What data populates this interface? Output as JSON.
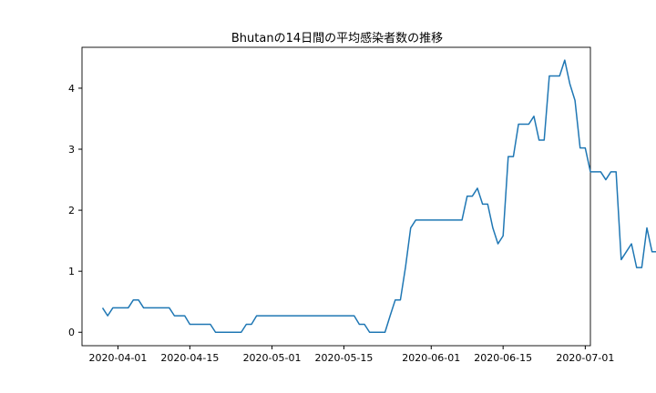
{
  "chart_data": {
    "type": "line",
    "title": "Bhutanの14日間の平均感染者数の推移",
    "xlabel": "",
    "ylabel": "",
    "x_start": "2020-03-29",
    "xlim": [
      "2020-03-25",
      "2020-07-02"
    ],
    "ylim": [
      -0.22,
      4.67
    ],
    "x_ticks": [
      "2020-04-01",
      "2020-04-15",
      "2020-05-01",
      "2020-05-15",
      "2020-06-01",
      "2020-06-15",
      "2020-07-01"
    ],
    "y_ticks": [
      0,
      1,
      2,
      3,
      4
    ],
    "grid": false,
    "line_color": "#1f77b4",
    "series": [
      {
        "values": [
          0.4,
          0.27,
          0.4,
          0.4,
          0.4,
          0.4,
          0.53,
          0.53,
          0.4,
          0.4,
          0.4,
          0.4,
          0.4,
          0.4,
          0.27,
          0.27,
          0.27,
          0.13,
          0.13,
          0.13,
          0.13,
          0.13,
          0.0,
          0.0,
          0.0,
          0.0,
          0.0,
          0.0,
          0.13,
          0.13,
          0.27,
          0.27,
          0.27,
          0.27,
          0.27,
          0.27,
          0.27,
          0.27,
          0.27,
          0.27,
          0.27,
          0.27,
          0.27,
          0.27,
          0.27,
          0.27,
          0.27,
          0.27,
          0.27,
          0.27,
          0.13,
          0.13,
          0.0,
          0.0,
          0.0,
          0.0,
          0.27,
          0.53,
          0.53,
          1.07,
          1.71,
          1.84,
          1.84,
          1.84,
          1.84,
          1.84,
          1.84,
          1.84,
          1.84,
          1.84,
          1.84,
          2.23,
          2.23,
          2.36,
          2.1,
          2.1,
          1.71,
          1.45,
          1.58,
          2.88,
          2.88,
          3.41,
          3.41,
          3.41,
          3.54,
          3.15,
          3.15,
          4.2,
          4.2,
          4.2,
          4.46,
          4.07,
          3.8,
          3.02,
          3.02,
          2.63,
          2.63,
          2.63,
          2.5,
          2.63,
          2.63,
          1.19,
          1.32,
          1.45,
          1.06,
          1.06,
          1.71,
          1.32,
          1.32,
          1.32,
          1.32
        ]
      }
    ]
  }
}
